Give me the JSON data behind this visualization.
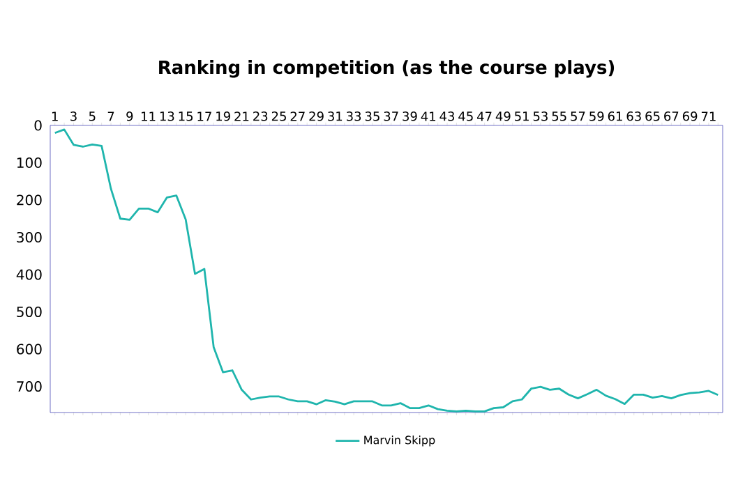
{
  "chart_data": {
    "type": "line",
    "title": "Ranking in competition (as the course plays)",
    "categories": [
      "1",
      null,
      "3",
      null,
      "5",
      null,
      "7",
      null,
      "9",
      null,
      "11",
      null,
      "13",
      null,
      "15",
      null,
      "17",
      null,
      "19",
      null,
      "21",
      null,
      "23",
      null,
      "25",
      null,
      "27",
      null,
      "29",
      null,
      "31",
      null,
      "33",
      null,
      "35",
      null,
      "37",
      null,
      "39",
      null,
      "41",
      null,
      "43",
      null,
      "45",
      null,
      "47",
      null,
      "49",
      null,
      "51",
      null,
      "53",
      null,
      "55",
      null,
      "57",
      null,
      "59",
      null,
      "61",
      null,
      "63",
      null,
      "65",
      null,
      "67",
      null,
      "69",
      null,
      "71",
      null
    ],
    "series": [
      {
        "name": "Marvin Skipp",
        "color": "#1fb5ad",
        "values": [
          20,
          11,
          52,
          57,
          51,
          55,
          170,
          250,
          253,
          223,
          223,
          233,
          193,
          188,
          252,
          398,
          385,
          595,
          662,
          657,
          709,
          735,
          730,
          727,
          727,
          735,
          740,
          740,
          748,
          737,
          741,
          748,
          740,
          740,
          740,
          751,
          751,
          745,
          758,
          758,
          751,
          761,
          765,
          767,
          765,
          767,
          767,
          758,
          756,
          740,
          735,
          706,
          701,
          709,
          706,
          722,
          732,
          721,
          709,
          725,
          734,
          747,
          722,
          722,
          730,
          726,
          732,
          723,
          718,
          716,
          712,
          723
        ]
      }
    ],
    "ylim": [
      770,
      0
    ],
    "yticks": [
      0,
      100,
      200,
      300,
      400,
      500,
      600,
      700
    ],
    "grid": false,
    "legend": "bottom",
    "marker": "none",
    "line_style": "solid"
  }
}
